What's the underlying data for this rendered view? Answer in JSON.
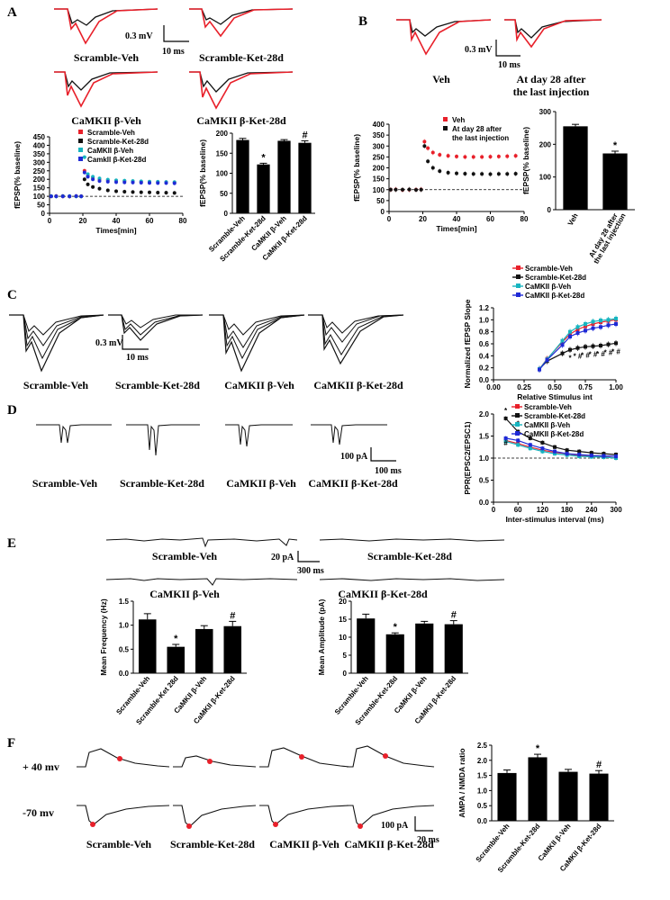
{
  "panels": {
    "A": {
      "letter": "A",
      "trace_captions": [
        "Scramble-Veh",
        "Scramble-Ket-28d",
        "CaMKII β-Veh",
        "CaMKII β-Ket-28d"
      ],
      "scale_v": "0.3 mV",
      "scale_t": "10 ms"
    },
    "B": {
      "letter": "B",
      "trace_captions": [
        "Veh",
        "At day 28 after",
        "the last injection"
      ],
      "scale_v": "0.3 mV",
      "scale_t": "10 ms"
    },
    "C": {
      "letter": "C",
      "trace_captions": [
        "Scramble-Veh",
        "Scramble-Ket-28d",
        "CaMKII β-Veh",
        "CaMKII β-Ket-28d"
      ],
      "scale_v": "0.3 mV",
      "scale_t": "10 ms"
    },
    "D": {
      "letter": "D",
      "trace_captions": [
        "Scramble-Veh",
        "Scramble-Ket-28d",
        "CaMKII β-Veh",
        "CaMKII β-Ket-28d"
      ],
      "scale_i": "100 pA",
      "scale_t": "100 ms"
    },
    "E": {
      "letter": "E",
      "trace_captions": [
        "Scramble-Veh",
        "Scramble-Ket-28d",
        "CaMKII β-Veh",
        "CaMKII β-Ket-28d"
      ],
      "scale_i": "20 pA",
      "scale_t": "300 ms"
    },
    "F": {
      "letter": "F",
      "row_labels": [
        "+ 40 mv",
        "-70 mv"
      ],
      "trace_captions": [
        "Scramble-Veh",
        "Scramble-Ket-28d",
        "CaMKII β-Veh",
        "CaMKII β-Ket-28d"
      ],
      "scale_i": "100 pA",
      "scale_t": "20 ms"
    }
  },
  "colors": {
    "scramble_veh": "#e8202a",
    "scramble_ket": "#111111",
    "camk_veh": "#17b5c0",
    "camk_ket": "#1f2ad6",
    "veh_red": "#e8202a",
    "bar": "#000000"
  },
  "chart_data": [
    {
      "id": "A_timecourse",
      "type": "scatter",
      "xlabel": "Times[min]",
      "ylabel": "fEPSP(% baseline)",
      "xlim": [
        0,
        80
      ],
      "ylim": [
        0,
        450
      ],
      "xticks": [
        0,
        20,
        40,
        60,
        80
      ],
      "yticks": [
        0,
        50,
        100,
        150,
        200,
        250,
        300,
        350,
        400,
        450
      ],
      "baseline": 100,
      "legend_position": "top-right",
      "series": [
        {
          "name": "Scramble-Veh",
          "color": "#e8202a",
          "pts": [
            [
              1,
              100
            ],
            [
              4,
              101
            ],
            [
              8,
              99
            ],
            [
              12,
              100
            ],
            [
              16,
              101
            ],
            [
              19,
              100
            ],
            [
              21,
              250
            ],
            [
              23,
              220
            ],
            [
              26,
              210
            ],
            [
              30,
              200
            ],
            [
              35,
              195
            ],
            [
              40,
              192
            ],
            [
              45,
              190
            ],
            [
              50,
              188
            ],
            [
              55,
              186
            ],
            [
              60,
              185
            ],
            [
              65,
              184
            ],
            [
              70,
              183
            ],
            [
              75,
              182
            ]
          ]
        },
        {
          "name": "Scramble-Ket-28d",
          "color": "#111111",
          "pts": [
            [
              1,
              100
            ],
            [
              4,
              100
            ],
            [
              8,
              101
            ],
            [
              12,
              99
            ],
            [
              16,
              100
            ],
            [
              19,
              100
            ],
            [
              21,
              200
            ],
            [
              23,
              170
            ],
            [
              26,
              155
            ],
            [
              30,
              145
            ],
            [
              35,
              135
            ],
            [
              40,
              130
            ],
            [
              45,
              127
            ],
            [
              50,
              125
            ],
            [
              55,
              124
            ],
            [
              60,
              123
            ],
            [
              65,
              122
            ],
            [
              70,
              121
            ],
            [
              75,
              120
            ]
          ]
        },
        {
          "name": "CaMKII β-Veh",
          "color": "#17b5c0",
          "pts": [
            [
              1,
              101
            ],
            [
              4,
              99
            ],
            [
              8,
              100
            ],
            [
              12,
              101
            ],
            [
              16,
              100
            ],
            [
              19,
              99
            ],
            [
              21,
              330
            ],
            [
              23,
              230
            ],
            [
              26,
              215
            ],
            [
              30,
              205
            ],
            [
              35,
              198
            ],
            [
              40,
              194
            ],
            [
              45,
              192
            ],
            [
              50,
              190
            ],
            [
              55,
              188
            ],
            [
              60,
              186
            ],
            [
              65,
              185
            ],
            [
              70,
              184
            ],
            [
              75,
              183
            ]
          ]
        },
        {
          "name": "Camkll β-Ket-28d",
          "color": "#1f2ad6",
          "pts": [
            [
              1,
              100
            ],
            [
              4,
              100
            ],
            [
              8,
              100
            ],
            [
              12,
              100
            ],
            [
              16,
              101
            ],
            [
              19,
              100
            ],
            [
              21,
              240
            ],
            [
              23,
              215
            ],
            [
              26,
              200
            ],
            [
              30,
              190
            ],
            [
              35,
              186
            ],
            [
              40,
              183
            ],
            [
              45,
              182
            ],
            [
              50,
              181
            ],
            [
              55,
              180
            ],
            [
              60,
              179
            ],
            [
              65,
              178
            ],
            [
              70,
              178
            ],
            [
              75,
              177
            ]
          ]
        }
      ]
    },
    {
      "id": "A_bar",
      "type": "bar",
      "ylabel": "fEPSP(% baseline)",
      "ylim": [
        0,
        200
      ],
      "yticks": [
        0,
        50,
        100,
        150,
        200
      ],
      "categories": [
        "Scramble-Veh",
        "Scramble-Ket-28d",
        "CaMKII β-Veh",
        "CaMKII β-Ket-28d"
      ],
      "values": [
        183,
        122,
        181,
        176
      ],
      "errors": [
        4,
        3,
        3,
        5
      ],
      "marks": [
        "",
        "*",
        "",
        "#"
      ]
    },
    {
      "id": "B_timecourse",
      "type": "scatter",
      "xlabel": "Times[min]",
      "ylabel": "fEPSP(% baseline)",
      "xlim": [
        0,
        80
      ],
      "ylim": [
        0,
        400
      ],
      "xticks": [
        0,
        20,
        40,
        60,
        80
      ],
      "yticks": [
        0,
        50,
        100,
        150,
        200,
        250,
        300,
        350,
        400
      ],
      "baseline": 100,
      "legend_position": "top-right",
      "series": [
        {
          "name": "Veh",
          "color": "#e8202a",
          "pts": [
            [
              1,
              100
            ],
            [
              4,
              101
            ],
            [
              8,
              99
            ],
            [
              12,
              100
            ],
            [
              16,
              100
            ],
            [
              19,
              101
            ],
            [
              21,
              320
            ],
            [
              23,
              290
            ],
            [
              26,
              270
            ],
            [
              30,
              260
            ],
            [
              35,
              255
            ],
            [
              40,
              252
            ],
            [
              45,
              250
            ],
            [
              50,
              250
            ],
            [
              55,
              250
            ],
            [
              60,
              251
            ],
            [
              65,
              252
            ],
            [
              70,
              253
            ],
            [
              75,
              255
            ]
          ]
        },
        {
          "name": "At day 28 after\nthe last  injection",
          "color": "#111111",
          "pts": [
            [
              1,
              100
            ],
            [
              4,
              100
            ],
            [
              8,
              100
            ],
            [
              12,
              101
            ],
            [
              16,
              99
            ],
            [
              19,
              100
            ],
            [
              21,
              300
            ],
            [
              23,
              230
            ],
            [
              26,
              200
            ],
            [
              30,
              185
            ],
            [
              35,
              178
            ],
            [
              40,
              175
            ],
            [
              45,
              173
            ],
            [
              50,
              172
            ],
            [
              55,
              172
            ],
            [
              60,
              171
            ],
            [
              65,
              172
            ],
            [
              70,
              172
            ],
            [
              75,
              173
            ]
          ]
        }
      ]
    },
    {
      "id": "B_bar",
      "type": "bar",
      "ylabel": "fEPSP(% baseline)",
      "ylim": [
        0,
        300
      ],
      "yticks": [
        0,
        100,
        200,
        300
      ],
      "categories": [
        "Veh",
        "At day 28 after\nthe last  injection"
      ],
      "values": [
        255,
        172
      ],
      "errors": [
        6,
        7
      ],
      "marks": [
        "",
        "*"
      ]
    },
    {
      "id": "C_io",
      "type": "line",
      "xlabel": "Relative Stimulus int",
      "ylabel": "Normalized fEPSP Slope",
      "xlim": [
        0,
        1.0
      ],
      "ylim": [
        0,
        1.2
      ],
      "xticks": [
        0.0,
        0.25,
        0.5,
        0.75,
        1.0
      ],
      "yticks": [
        0.0,
        0.2,
        0.4,
        0.6,
        0.8,
        1.0,
        1.2
      ],
      "legend_position": "top-right",
      "x": [
        0.375,
        0.4375,
        0.5625,
        0.625,
        0.6875,
        0.75,
        0.8125,
        0.875,
        0.9375,
        1.0
      ],
      "series": [
        {
          "name": "Scramble-Veh",
          "color": "#e8202a",
          "values": [
            0.18,
            0.35,
            0.63,
            0.76,
            0.84,
            0.89,
            0.93,
            0.96,
            0.98,
            1.0
          ]
        },
        {
          "name": "Scramble-Ket-28d",
          "color": "#111111",
          "values": [
            0.18,
            0.31,
            0.44,
            0.5,
            0.53,
            0.55,
            0.56,
            0.57,
            0.59,
            0.61
          ]
        },
        {
          "name": "CaMKII β-Veh",
          "color": "#17b5c0",
          "values": [
            0.18,
            0.34,
            0.65,
            0.8,
            0.88,
            0.93,
            0.97,
            0.99,
            1.0,
            1.02
          ]
        },
        {
          "name": "CaMKII β-Ket-28d",
          "color": "#1f2ad6",
          "values": [
            0.17,
            0.33,
            0.58,
            0.72,
            0.78,
            0.82,
            0.86,
            0.88,
            0.91,
            0.93
          ]
        }
      ],
      "marks": [
        {
          "x": 0.625,
          "text": "*"
        },
        {
          "x": 0.6875,
          "text": "* #"
        },
        {
          "x": 0.75,
          "text": "* #"
        },
        {
          "x": 0.8125,
          "text": "* #"
        },
        {
          "x": 0.875,
          "text": "* #"
        },
        {
          "x": 0.9375,
          "text": "* #"
        },
        {
          "x": 1.0,
          "text": "* #"
        }
      ]
    },
    {
      "id": "D_ppr",
      "type": "line",
      "xlabel": "Inter-stimulus interval (ms)",
      "ylabel": "PPR(EPSC2/EPSC1)",
      "xlim": [
        0,
        300
      ],
      "ylim": [
        0,
        2.0
      ],
      "xticks": [
        0,
        60,
        120,
        180,
        240,
        300
      ],
      "yticks": [
        0.0,
        0.5,
        1.0,
        1.5,
        2.0
      ],
      "baseline": 1.0,
      "legend_position": "top-right",
      "x": [
        30,
        60,
        90,
        120,
        150,
        180,
        210,
        240,
        270,
        300
      ],
      "series": [
        {
          "name": "Scramble-Veh",
          "color": "#e8202a",
          "values": [
            1.4,
            1.33,
            1.25,
            1.18,
            1.13,
            1.1,
            1.06,
            1.05,
            1.03,
            1.0
          ]
        },
        {
          "name": "Scramble-Ket-28d",
          "color": "#111111",
          "values": [
            1.9,
            1.6,
            1.45,
            1.35,
            1.25,
            1.18,
            1.15,
            1.12,
            1.1,
            1.08
          ]
        },
        {
          "name": "CaMKII β-Veh",
          "color": "#17b5c0",
          "values": [
            1.38,
            1.3,
            1.22,
            1.15,
            1.1,
            1.07,
            1.04,
            1.03,
            1.02,
            1.0
          ]
        },
        {
          "name": "CaMKII β-Ket-28d",
          "color": "#1f2ad6",
          "values": [
            1.45,
            1.4,
            1.3,
            1.22,
            1.15,
            1.1,
            1.08,
            1.06,
            1.05,
            1.04
          ]
        }
      ],
      "marks": [
        {
          "x": 30,
          "text": "*"
        },
        {
          "x": 60,
          "text": "*"
        },
        {
          "x": 30,
          "text": "#",
          "low": true
        }
      ]
    },
    {
      "id": "E_freq",
      "type": "bar",
      "ylabel": "Mean Frequency (Hz)",
      "ylim": [
        0,
        1.5
      ],
      "yticks": [
        0.0,
        0.5,
        1.0,
        1.5
      ],
      "categories": [
        "Scramble-Veh",
        "Scramble-Ket 28d",
        "CaMKII β-Veh",
        "CaMKII β-Ket-28d"
      ],
      "values": [
        1.12,
        0.55,
        0.92,
        0.98
      ],
      "errors": [
        0.12,
        0.05,
        0.07,
        0.1
      ],
      "marks": [
        "",
        "*",
        "",
        "#"
      ]
    },
    {
      "id": "E_amp",
      "type": "bar",
      "ylabel": "Mean Amplitude (pA)",
      "ylim": [
        0,
        20
      ],
      "yticks": [
        0,
        5,
        10,
        15,
        20
      ],
      "categories": [
        "Scramble-Veh",
        "Scramble-Ket-28d",
        "CaMKII β-Veh",
        "CaMKII β-Ket-28d"
      ],
      "values": [
        15.2,
        10.8,
        13.8,
        13.6
      ],
      "errors": [
        1.2,
        0.4,
        0.6,
        1.0
      ],
      "marks": [
        "",
        "*",
        "",
        "#"
      ]
    },
    {
      "id": "F_ratio",
      "type": "bar",
      "ylabel": "AMPA / NMDA ratio",
      "ylim": [
        0,
        2.5
      ],
      "yticks": [
        0.0,
        0.5,
        1.0,
        1.5,
        2.0,
        2.5
      ],
      "categories": [
        "Scramble-Veh",
        "Scramble-Ket-28d",
        "CaMKII β-Veh",
        "CaMKII β-Ket-28d"
      ],
      "values": [
        1.58,
        2.1,
        1.62,
        1.56
      ],
      "errors": [
        0.1,
        0.1,
        0.08,
        0.1
      ],
      "marks": [
        "",
        "*",
        "",
        "#"
      ]
    }
  ]
}
